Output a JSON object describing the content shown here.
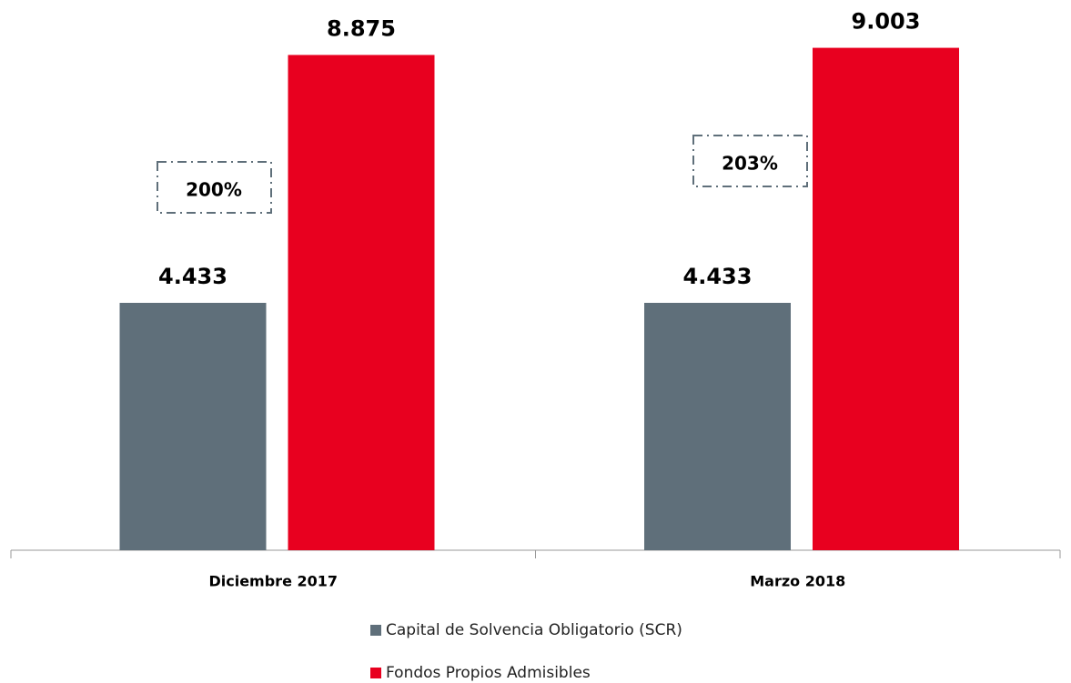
{
  "chart_data": {
    "type": "bar",
    "categories": [
      "Diciembre 2017",
      "Marzo 2018"
    ],
    "series": [
      {
        "name": "Capital de Solvencia Obligatorio (SCR)",
        "color": "#5f6f7a",
        "values": [
          4433,
          4433
        ],
        "value_labels": [
          "4.433",
          "4.433"
        ]
      },
      {
        "name": "Fondos Propios Admisibles",
        "color": "#e8001f",
        "values": [
          8875,
          9003
        ],
        "value_labels": [
          "8.875",
          "9.003"
        ]
      }
    ],
    "annotations": [
      "200%",
      "203%"
    ],
    "ylim": [
      0,
      10000
    ]
  }
}
